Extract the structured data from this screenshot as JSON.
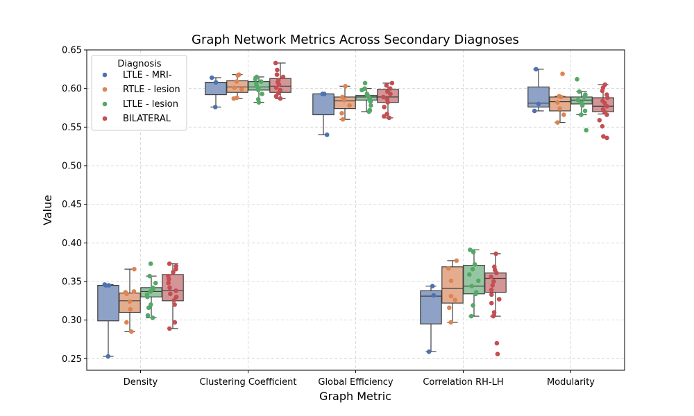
{
  "chart_data": {
    "type": "box",
    "title": "Graph Network Metrics Across Secondary Diagnoses",
    "xlabel": "Graph Metric",
    "ylabel": "Value",
    "ylim": [
      0.235,
      0.65
    ],
    "yticks": [
      "0.25",
      "0.30",
      "0.35",
      "0.40",
      "0.45",
      "0.50",
      "0.55",
      "0.60",
      "0.65"
    ],
    "grid": true,
    "categories": [
      "Density",
      "Clustering Coefficient",
      "Global Efficiency",
      "Correlation RH-LH",
      "Modularity"
    ],
    "legend": {
      "title": "Diagnosis",
      "placement": "top-left"
    },
    "series": [
      {
        "name": "LTLE - MRI-",
        "color": "#4c72b0",
        "box_color": "#8da2c6",
        "boxes": [
          {
            "whisker_low": 0.253,
            "q1": 0.299,
            "median": 0.345,
            "q3": 0.345,
            "whisker_high": 0.346,
            "points": [
              0.253,
              0.345,
              0.346,
              0.345
            ]
          },
          {
            "whisker_low": 0.576,
            "q1": 0.592,
            "median": 0.608,
            "q3": 0.608,
            "whisker_high": 0.614,
            "points": [
              0.576,
              0.608,
              0.614
            ]
          },
          {
            "whisker_low": 0.54,
            "q1": 0.566,
            "median": 0.593,
            "q3": 0.593,
            "whisker_high": 0.593,
            "points": [
              0.54,
              0.593,
              0.593
            ]
          },
          {
            "whisker_low": 0.259,
            "q1": 0.295,
            "median": 0.331,
            "q3": 0.338,
            "whisker_high": 0.344,
            "points": [
              0.259,
              0.332,
              0.344
            ]
          },
          {
            "whisker_low": 0.571,
            "q1": 0.576,
            "median": 0.581,
            "q3": 0.602,
            "whisker_high": 0.625,
            "points": [
              0.571,
              0.58,
              0.625
            ]
          }
        ]
      },
      {
        "name": "RTLE - lesion",
        "color": "#dd8452",
        "box_color": "#e5ad8f",
        "boxes": [
          {
            "whisker_low": 0.285,
            "q1": 0.31,
            "median": 0.325,
            "q3": 0.335,
            "whisker_high": 0.366,
            "points": [
              0.285,
              0.297,
              0.314,
              0.324,
              0.334,
              0.336,
              0.337,
              0.366
            ]
          },
          {
            "whisker_low": 0.587,
            "q1": 0.595,
            "median": 0.602,
            "q3": 0.61,
            "whisker_high": 0.618,
            "points": [
              0.587,
              0.588,
              0.599,
              0.601,
              0.609,
              0.617,
              0.618
            ]
          },
          {
            "whisker_low": 0.56,
            "q1": 0.574,
            "median": 0.584,
            "q3": 0.589,
            "whisker_high": 0.603,
            "points": [
              0.56,
              0.568,
              0.578,
              0.585,
              0.589,
              0.603
            ]
          },
          {
            "whisker_low": 0.297,
            "q1": 0.322,
            "median": 0.341,
            "q3": 0.369,
            "whisker_high": 0.377,
            "points": [
              0.297,
              0.316,
              0.326,
              0.331,
              0.351,
              0.367,
              0.377
            ]
          },
          {
            "whisker_low": 0.556,
            "q1": 0.571,
            "median": 0.583,
            "q3": 0.589,
            "whisker_high": 0.59,
            "points": [
              0.556,
              0.566,
              0.574,
              0.582,
              0.589,
              0.59,
              0.619
            ]
          }
        ]
      },
      {
        "name": "LTLE - lesion",
        "color": "#55a868",
        "box_color": "#95c6a1",
        "boxes": [
          {
            "whisker_low": 0.303,
            "q1": 0.33,
            "median": 0.337,
            "q3": 0.342,
            "whisker_high": 0.357,
            "points": [
              0.303,
              0.306,
              0.316,
              0.32,
              0.33,
              0.333,
              0.337,
              0.34,
              0.342,
              0.348,
              0.357,
              0.373
            ]
          },
          {
            "whisker_low": 0.582,
            "q1": 0.598,
            "median": 0.602,
            "q3": 0.609,
            "whisker_high": 0.615,
            "points": [
              0.582,
              0.586,
              0.593,
              0.598,
              0.6,
              0.603,
              0.606,
              0.609,
              0.612,
              0.615
            ]
          },
          {
            "whisker_low": 0.57,
            "q1": 0.585,
            "median": 0.589,
            "q3": 0.591,
            "whisker_high": 0.6,
            "points": [
              0.57,
              0.572,
              0.578,
              0.583,
              0.586,
              0.589,
              0.591,
              0.593,
              0.598,
              0.6,
              0.607
            ]
          },
          {
            "whisker_low": 0.305,
            "q1": 0.334,
            "median": 0.344,
            "q3": 0.371,
            "whisker_high": 0.391,
            "points": [
              0.305,
              0.319,
              0.334,
              0.336,
              0.344,
              0.351,
              0.359,
              0.366,
              0.372,
              0.388,
              0.391
            ]
          },
          {
            "whisker_low": 0.566,
            "q1": 0.58,
            "median": 0.585,
            "q3": 0.589,
            "whisker_high": 0.596,
            "points": [
              0.546,
              0.566,
              0.571,
              0.578,
              0.582,
              0.585,
              0.589,
              0.592,
              0.596,
              0.612
            ]
          }
        ]
      },
      {
        "name": "BILATERAL",
        "color": "#c44e52",
        "box_color": "#d49596",
        "boxes": [
          {
            "whisker_low": 0.289,
            "q1": 0.325,
            "median": 0.338,
            "q3": 0.359,
            "whisker_high": 0.373,
            "points": [
              0.289,
              0.297,
              0.32,
              0.326,
              0.33,
              0.334,
              0.338,
              0.342,
              0.348,
              0.353,
              0.357,
              0.362,
              0.366,
              0.37,
              0.373
            ]
          },
          {
            "whisker_low": 0.587,
            "q1": 0.595,
            "median": 0.603,
            "q3": 0.613,
            "whisker_high": 0.633,
            "points": [
              0.587,
              0.59,
              0.594,
              0.598,
              0.601,
              0.605,
              0.608,
              0.611,
              0.615,
              0.618,
              0.624,
              0.633
            ]
          },
          {
            "whisker_low": 0.562,
            "q1": 0.582,
            "median": 0.589,
            "q3": 0.599,
            "whisker_high": 0.607,
            "points": [
              0.562,
              0.564,
              0.567,
              0.576,
              0.582,
              0.586,
              0.589,
              0.593,
              0.596,
              0.6,
              0.604,
              0.607
            ]
          },
          {
            "whisker_low": 0.305,
            "q1": 0.336,
            "median": 0.354,
            "q3": 0.361,
            "whisker_high": 0.386,
            "points": [
              0.256,
              0.27,
              0.305,
              0.31,
              0.322,
              0.327,
              0.333,
              0.339,
              0.345,
              0.35,
              0.356,
              0.361,
              0.365,
              0.369,
              0.386
            ]
          },
          {
            "whisker_low": 0.567,
            "q1": 0.57,
            "median": 0.577,
            "q3": 0.588,
            "whisker_high": 0.605,
            "points": [
              0.536,
              0.538,
              0.551,
              0.559,
              0.566,
              0.57,
              0.573,
              0.577,
              0.581,
              0.584,
              0.588,
              0.592,
              0.597,
              0.601,
              0.605
            ]
          }
        ]
      }
    ]
  }
}
